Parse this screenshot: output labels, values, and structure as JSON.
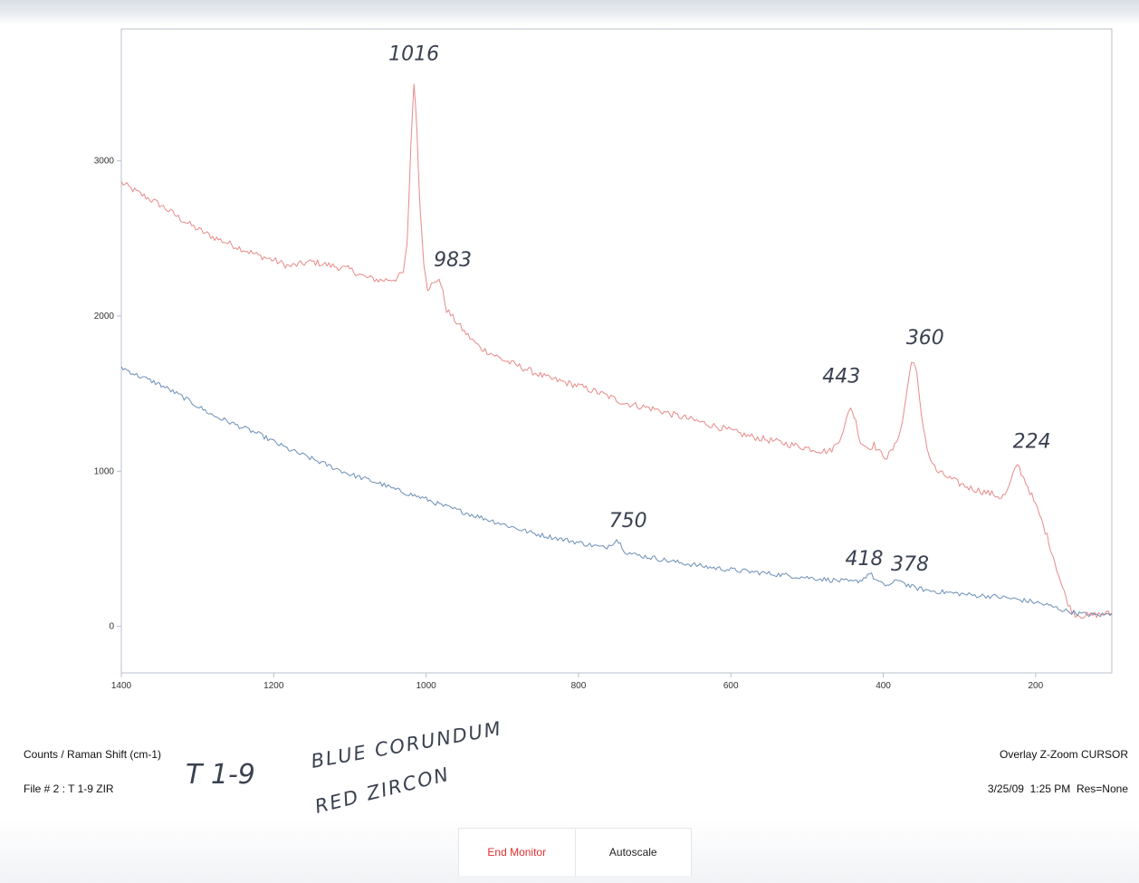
{
  "footer": {
    "axis_units": "Counts / Raman Shift (cm-1)",
    "file_label": "File # 2 : T 1-9 ZIR",
    "mode": "Overlay Z-Zoom CURSOR",
    "timestamp": "3/25/09  1:25 PM  Res=None"
  },
  "buttons": {
    "end_monitor": "End Monitor",
    "autoscale": "Autoscale"
  },
  "colors": {
    "red_series": "#e88a8a",
    "blue_series": "#6b8fb5",
    "end_monitor_text": "#e03030",
    "axis": "#b8c0cc"
  },
  "chart_data": {
    "type": "line",
    "xlim": [
      1400,
      100
    ],
    "ylim": [
      -300,
      3850
    ],
    "x_reversed": true,
    "x_ticks": [
      1400,
      1200,
      1000,
      800,
      600,
      400,
      200
    ],
    "y_ticks": [
      3000,
      2000,
      1000,
      0
    ],
    "grid": false,
    "series": [
      {
        "color": "#e88a8a",
        "points": [
          [
            1400,
            2860
          ],
          [
            1380,
            2800
          ],
          [
            1350,
            2720
          ],
          [
            1320,
            2620
          ],
          [
            1300,
            2560
          ],
          [
            1280,
            2510
          ],
          [
            1250,
            2450
          ],
          [
            1220,
            2390
          ],
          [
            1200,
            2360
          ],
          [
            1180,
            2320
          ],
          [
            1150,
            2350
          ],
          [
            1120,
            2320
          ],
          [
            1100,
            2300
          ],
          [
            1080,
            2250
          ],
          [
            1060,
            2230
          ],
          [
            1040,
            2240
          ],
          [
            1030,
            2280
          ],
          [
            1025,
            2450
          ],
          [
            1020,
            3100
          ],
          [
            1016,
            3510
          ],
          [
            1012,
            3200
          ],
          [
            1008,
            2700
          ],
          [
            1003,
            2350
          ],
          [
            998,
            2180
          ],
          [
            993,
            2200
          ],
          [
            988,
            2210
          ],
          [
            983,
            2250
          ],
          [
            978,
            2150
          ],
          [
            973,
            2040
          ],
          [
            965,
            1990
          ],
          [
            950,
            1900
          ],
          [
            930,
            1800
          ],
          [
            900,
            1720
          ],
          [
            870,
            1660
          ],
          [
            840,
            1600
          ],
          [
            800,
            1550
          ],
          [
            770,
            1500
          ],
          [
            740,
            1440
          ],
          [
            700,
            1400
          ],
          [
            680,
            1370
          ],
          [
            650,
            1330
          ],
          [
            620,
            1290
          ],
          [
            600,
            1260
          ],
          [
            580,
            1230
          ],
          [
            560,
            1210
          ],
          [
            540,
            1190
          ],
          [
            520,
            1170
          ],
          [
            500,
            1150
          ],
          [
            480,
            1130
          ],
          [
            470,
            1130
          ],
          [
            460,
            1180
          ],
          [
            450,
            1300
          ],
          [
            443,
            1420
          ],
          [
            436,
            1320
          ],
          [
            430,
            1190
          ],
          [
            420,
            1150
          ],
          [
            412,
            1170
          ],
          [
            405,
            1120
          ],
          [
            395,
            1090
          ],
          [
            385,
            1160
          ],
          [
            375,
            1310
          ],
          [
            368,
            1550
          ],
          [
            363,
            1700
          ],
          [
            360,
            1720
          ],
          [
            356,
            1620
          ],
          [
            350,
            1350
          ],
          [
            340,
            1100
          ],
          [
            330,
            1000
          ],
          [
            315,
            960
          ],
          [
            300,
            920
          ],
          [
            285,
            890
          ],
          [
            270,
            870
          ],
          [
            255,
            850
          ],
          [
            245,
            830
          ],
          [
            238,
            860
          ],
          [
            232,
            940
          ],
          [
            227,
            1010
          ],
          [
            224,
            1050
          ],
          [
            219,
            990
          ],
          [
            213,
            930
          ],
          [
            205,
            840
          ],
          [
            195,
            720
          ],
          [
            185,
            580
          ],
          [
            175,
            420
          ],
          [
            165,
            250
          ],
          [
            155,
            120
          ],
          [
            148,
            80
          ],
          [
            140,
            70
          ],
          [
            130,
            70
          ],
          [
            120,
            75
          ],
          [
            110,
            80
          ],
          [
            100,
            85
          ]
        ],
        "noise": 22
      },
      {
        "color": "#6b8fb5",
        "points": [
          [
            1400,
            1670
          ],
          [
            1380,
            1620
          ],
          [
            1350,
            1560
          ],
          [
            1320,
            1480
          ],
          [
            1300,
            1420
          ],
          [
            1280,
            1360
          ],
          [
            1250,
            1300
          ],
          [
            1220,
            1240
          ],
          [
            1200,
            1190
          ],
          [
            1180,
            1140
          ],
          [
            1150,
            1080
          ],
          [
            1120,
            1020
          ],
          [
            1100,
            980
          ],
          [
            1080,
            950
          ],
          [
            1060,
            920
          ],
          [
            1040,
            880
          ],
          [
            1020,
            850
          ],
          [
            1000,
            820
          ],
          [
            980,
            780
          ],
          [
            960,
            750
          ],
          [
            940,
            720
          ],
          [
            920,
            690
          ],
          [
            900,
            660
          ],
          [
            880,
            630
          ],
          [
            860,
            600
          ],
          [
            840,
            580
          ],
          [
            820,
            560
          ],
          [
            800,
            540
          ],
          [
            780,
            520
          ],
          [
            765,
            505
          ],
          [
            755,
            540
          ],
          [
            750,
            560
          ],
          [
            745,
            530
          ],
          [
            738,
            480
          ],
          [
            725,
            460
          ],
          [
            700,
            440
          ],
          [
            680,
            420
          ],
          [
            660,
            405
          ],
          [
            640,
            390
          ],
          [
            620,
            375
          ],
          [
            600,
            365
          ],
          [
            580,
            355
          ],
          [
            560,
            345
          ],
          [
            540,
            335
          ],
          [
            520,
            325
          ],
          [
            500,
            315
          ],
          [
            480,
            305
          ],
          [
            460,
            295
          ],
          [
            440,
            285
          ],
          [
            428,
            300
          ],
          [
            418,
            345
          ],
          [
            410,
            300
          ],
          [
            400,
            265
          ],
          [
            390,
            270
          ],
          [
            383,
            290
          ],
          [
            378,
            305
          ],
          [
            372,
            275
          ],
          [
            360,
            250
          ],
          [
            340,
            230
          ],
          [
            320,
            220
          ],
          [
            300,
            210
          ],
          [
            280,
            200
          ],
          [
            260,
            195
          ],
          [
            240,
            185
          ],
          [
            220,
            170
          ],
          [
            200,
            155
          ],
          [
            180,
            130
          ],
          [
            160,
            100
          ],
          [
            140,
            80
          ],
          [
            120,
            72
          ],
          [
            100,
            80
          ]
        ],
        "noise": 16
      }
    ],
    "annotations": [
      {
        "text": "1016",
        "x": 1016,
        "y": 3650
      },
      {
        "text": "983",
        "x": 965,
        "y": 2320
      },
      {
        "text": "443",
        "x": 455,
        "y": 1570
      },
      {
        "text": "360",
        "x": 345,
        "y": 1820
      },
      {
        "text": "224",
        "x": 205,
        "y": 1150
      },
      {
        "text": "750",
        "x": 735,
        "y": 640
      },
      {
        "text": "418",
        "x": 425,
        "y": 395
      },
      {
        "text": "378",
        "x": 365,
        "y": 360
      }
    ]
  },
  "handwriting": {
    "sample_id": "T 1-9",
    "line1": "BLUE CORUNDUM",
    "line2": "RED ZIRCON"
  }
}
